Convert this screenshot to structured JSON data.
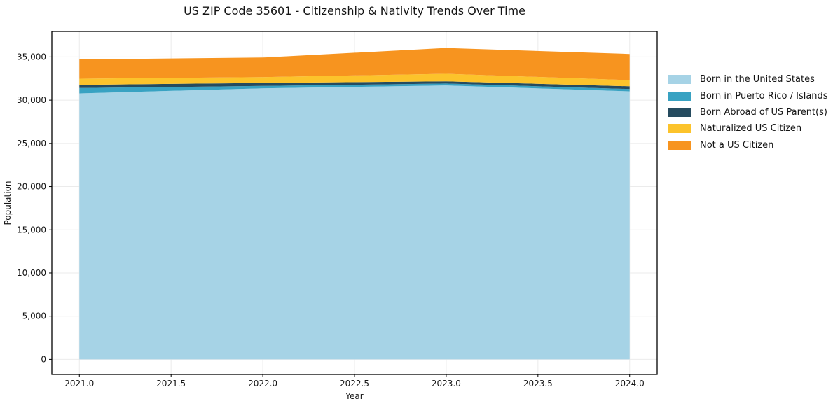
{
  "chart_data": {
    "type": "area",
    "stacked": true,
    "title": "US ZIP Code 35601 - Citizenship & Nativity Trends Over Time",
    "xlabel": "Year",
    "ylabel": "Population",
    "x": [
      2021,
      2022,
      2023,
      2024
    ],
    "series": [
      {
        "name": "Born in the United States",
        "color": "#a6d3e6",
        "values": [
          30780,
          31370,
          31700,
          31020
        ]
      },
      {
        "name": "Born in Puerto Rico / Islands",
        "color": "#38a2c2",
        "values": [
          620,
          280,
          220,
          270
        ]
      },
      {
        "name": "Born Abroad of US Parent(s)",
        "color": "#254b5f",
        "values": [
          380,
          340,
          260,
          320
        ]
      },
      {
        "name": "Naturalized US Citizen",
        "color": "#fcc32b",
        "values": [
          700,
          680,
          870,
          710
        ]
      },
      {
        "name": "Not a US Citizen",
        "color": "#f7941f",
        "values": [
          2230,
          2260,
          2990,
          3020
        ]
      }
    ],
    "totals": [
      34710,
      34930,
      36040,
      35340
    ],
    "xlim": [
      2020.85,
      2024.15
    ],
    "ylim": [
      -1750,
      37950
    ],
    "xticks": {
      "values": [
        2021.0,
        2021.5,
        2022.0,
        2022.5,
        2023.0,
        2023.5,
        2024.0
      ],
      "labels": [
        "2021.0",
        "2021.5",
        "2022.0",
        "2022.5",
        "2023.0",
        "2023.5",
        "2024.0"
      ]
    },
    "yticks": {
      "values": [
        0,
        5000,
        10000,
        15000,
        20000,
        25000,
        30000,
        35000
      ],
      "labels": [
        "0",
        "5,000",
        "10,000",
        "15,000",
        "20,000",
        "25,000",
        "30,000",
        "35,000"
      ]
    },
    "grid": true,
    "legend_position": "center-right",
    "colors": {
      "spine": "#000000",
      "gridline": "#ebebeb",
      "tick_text": "#141414"
    }
  }
}
